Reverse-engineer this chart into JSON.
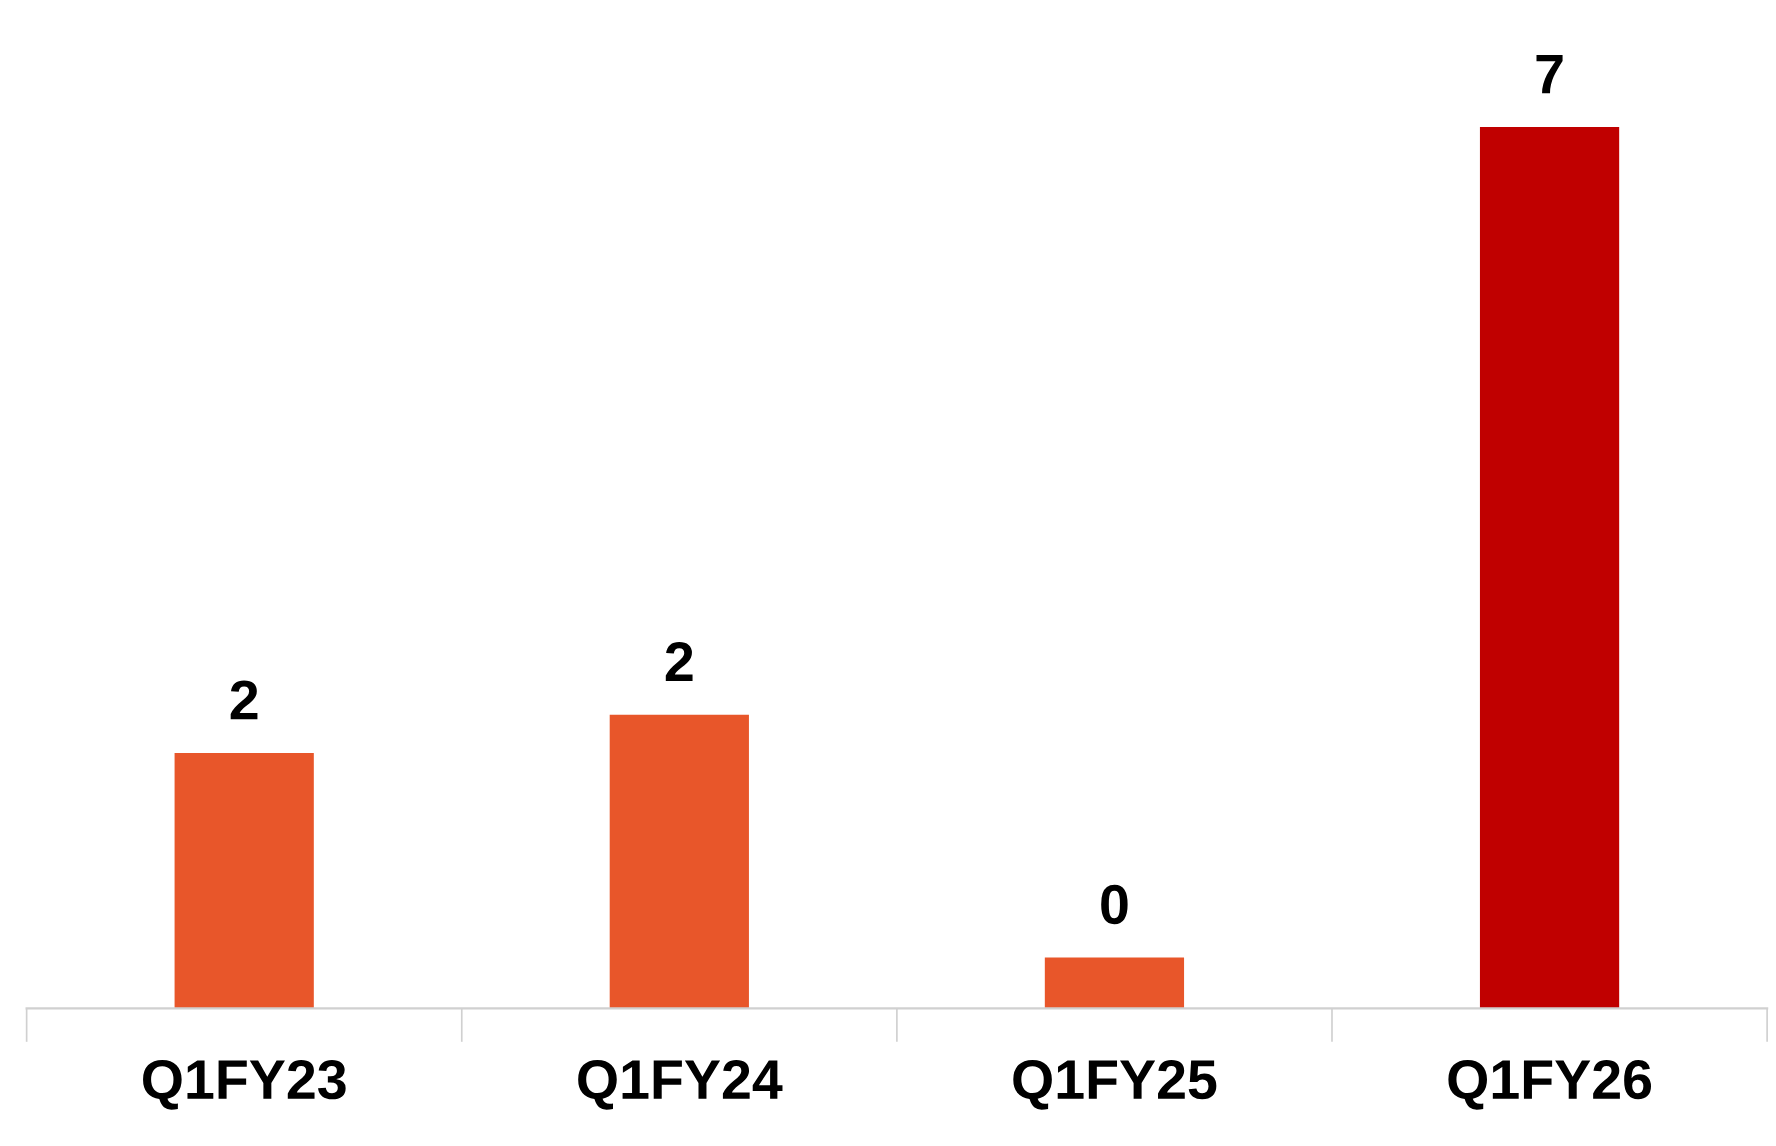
{
  "chart_data": {
    "type": "bar",
    "categories": [
      "Q1FY23",
      "Q1FY24",
      "Q1FY25",
      "Q1FY26"
    ],
    "values": [
      2.0,
      2.3,
      0.4,
      6.9
    ],
    "value_labels": [
      "2",
      "2",
      "0",
      "7"
    ],
    "colors": [
      "#e8562a",
      "#e8562a",
      "#e8562a",
      "#c00000"
    ],
    "grid": false,
    "legend": false
  }
}
